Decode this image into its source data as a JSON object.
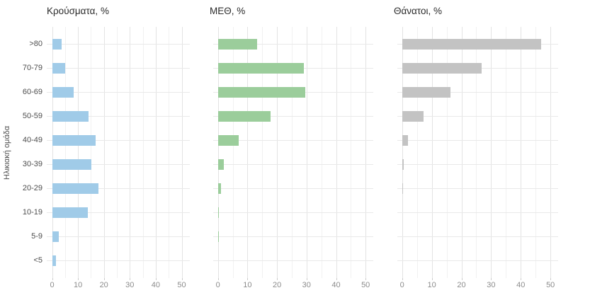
{
  "chart_data": {
    "type": "bar",
    "orientation": "horizontal",
    "layout": "three side-by-side facet panels sharing category axis",
    "ylabel": "Ηλικιακή ομάδα",
    "xlabel": "",
    "categories": [
      ">80",
      "70-79",
      "60-69",
      "50-59",
      "40-49",
      "30-39",
      "20-29",
      "10-19",
      "5-9",
      "<5"
    ],
    "x_ticks": [
      0,
      10,
      20,
      30,
      40,
      50
    ],
    "xlim": [
      0,
      53
    ],
    "grid": true,
    "legend_position": "none",
    "series": [
      {
        "name": "Κρούσματα, %",
        "color": "#A0CBE8",
        "values": [
          3.6,
          5.0,
          8.2,
          14.2,
          16.9,
          15.3,
          18.0,
          13.9,
          2.5,
          1.4
        ]
      },
      {
        "name": "ΜΕΘ, %",
        "color": "#9BCD9B",
        "values": [
          13.2,
          29.1,
          29.5,
          17.9,
          7.0,
          2.1,
          1.0,
          0.4,
          0.1,
          0.0
        ]
      },
      {
        "name": "Θάνατοι, %",
        "color": "#C3C3C3",
        "values": [
          46.8,
          26.7,
          16.2,
          7.2,
          2.1,
          0.6,
          0.2,
          0.0,
          0.0,
          0.0
        ]
      }
    ]
  }
}
